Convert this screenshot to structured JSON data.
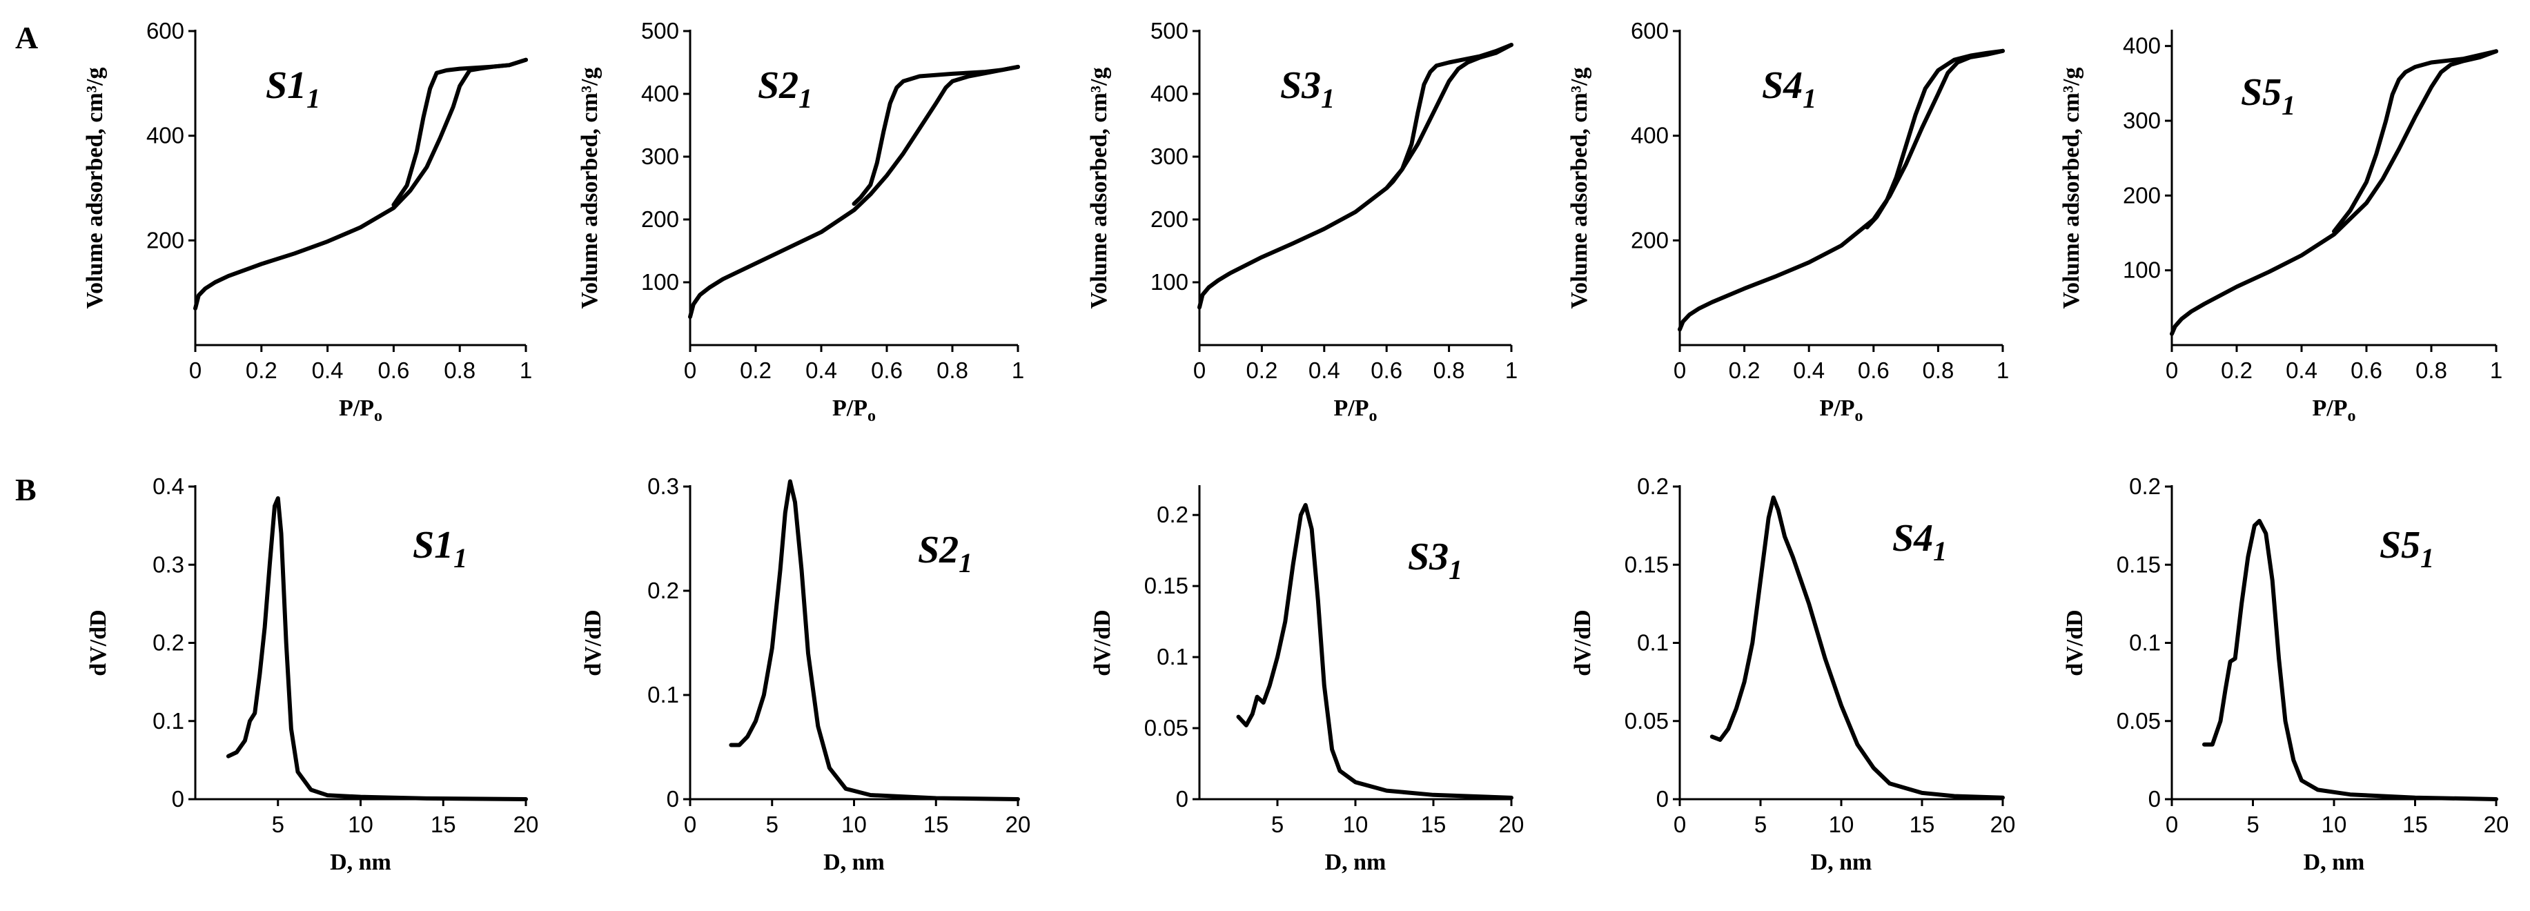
{
  "panel_labels": [
    "A",
    "B"
  ],
  "chart_data": [
    {
      "type": "line",
      "row": "A",
      "title": "S1",
      "title_subscript": "1",
      "xlabel": "P/P",
      "xlabel_subscript": "o",
      "ylabel": "Volume adsorbed, cm³/g",
      "xlim": [
        0,
        1
      ],
      "ylim": [
        0,
        600
      ],
      "xticks": [
        0,
        0.2,
        0.4,
        0.6,
        0.8,
        1
      ],
      "xtick_labels": [
        "0",
        "0.2",
        "0.4",
        "0.6",
        "0.8",
        "1"
      ],
      "yticks": [
        200,
        400,
        600
      ],
      "ytick_labels": [
        "200",
        "400",
        "600"
      ],
      "series": [
        {
          "name": "adsorption",
          "x": [
            0,
            0.01,
            0.03,
            0.06,
            0.1,
            0.2,
            0.3,
            0.4,
            0.5,
            0.6,
            0.65,
            0.7,
            0.74,
            0.78,
            0.8,
            0.83,
            0.86,
            0.9,
            0.95,
            1.0
          ],
          "y": [
            70,
            95,
            108,
            120,
            132,
            155,
            175,
            198,
            225,
            262,
            295,
            340,
            395,
            455,
            495,
            525,
            528,
            532,
            535,
            545
          ]
        },
        {
          "name": "desorption",
          "x": [
            1.0,
            0.95,
            0.9,
            0.85,
            0.8,
            0.76,
            0.73,
            0.71,
            0.69,
            0.67,
            0.64,
            0.6
          ],
          "y": [
            545,
            535,
            532,
            530,
            528,
            525,
            520,
            490,
            435,
            370,
            305,
            268
          ]
        }
      ]
    },
    {
      "type": "line",
      "row": "A",
      "title": "S2",
      "title_subscript": "1",
      "xlabel": "P/P",
      "xlabel_subscript": "o",
      "ylabel": "Volume adsorbed, cm³/g",
      "xlim": [
        0,
        1
      ],
      "ylim": [
        0,
        500
      ],
      "xticks": [
        0,
        0.2,
        0.4,
        0.6,
        0.8,
        1
      ],
      "xtick_labels": [
        "0",
        "0.2",
        "0.4",
        "0.6",
        "0.8",
        "1"
      ],
      "yticks": [
        100,
        200,
        300,
        400,
        500
      ],
      "ytick_labels": [
        "100",
        "200",
        "300",
        "400",
        "500"
      ],
      "series": [
        {
          "name": "adsorption",
          "x": [
            0,
            0.01,
            0.03,
            0.06,
            0.1,
            0.2,
            0.3,
            0.4,
            0.5,
            0.55,
            0.6,
            0.65,
            0.7,
            0.75,
            0.78,
            0.8,
            0.85,
            0.9,
            0.95,
            1.0
          ],
          "y": [
            45,
            65,
            80,
            92,
            105,
            130,
            155,
            180,
            215,
            240,
            270,
            305,
            345,
            385,
            410,
            420,
            428,
            433,
            438,
            443
          ]
        },
        {
          "name": "desorption",
          "x": [
            1.0,
            0.95,
            0.9,
            0.8,
            0.7,
            0.65,
            0.63,
            0.61,
            0.59,
            0.57,
            0.55,
            0.52,
            0.5
          ],
          "y": [
            443,
            438,
            435,
            432,
            428,
            420,
            410,
            385,
            340,
            290,
            255,
            235,
            225
          ]
        }
      ]
    },
    {
      "type": "line",
      "row": "A",
      "title": "S3",
      "title_subscript": "1",
      "xlabel": "P/P",
      "xlabel_subscript": "o",
      "ylabel": "Volume adsorbed, cm³/g",
      "xlim": [
        0,
        1
      ],
      "ylim": [
        0,
        500
      ],
      "xticks": [
        0,
        0.2,
        0.4,
        0.6,
        0.8,
        1
      ],
      "xtick_labels": [
        "0",
        "0.2",
        "0.4",
        "0.6",
        "0.8",
        "1"
      ],
      "yticks": [
        100,
        200,
        300,
        400,
        500
      ],
      "ytick_labels": [
        "100",
        "200",
        "300",
        "400",
        "500"
      ],
      "series": [
        {
          "name": "adsorption",
          "x": [
            0,
            0.01,
            0.03,
            0.06,
            0.1,
            0.2,
            0.3,
            0.4,
            0.5,
            0.6,
            0.65,
            0.7,
            0.75,
            0.8,
            0.83,
            0.86,
            0.9,
            0.95,
            1.0
          ],
          "y": [
            60,
            80,
            92,
            103,
            115,
            140,
            162,
            185,
            212,
            250,
            280,
            320,
            370,
            420,
            440,
            450,
            458,
            465,
            478
          ]
        },
        {
          "name": "desorption",
          "x": [
            1.0,
            0.95,
            0.9,
            0.85,
            0.8,
            0.76,
            0.74,
            0.72,
            0.7,
            0.68,
            0.65,
            0.62,
            0.6
          ],
          "y": [
            478,
            468,
            460,
            455,
            450,
            445,
            435,
            415,
            370,
            320,
            280,
            260,
            250
          ]
        }
      ]
    },
    {
      "type": "line",
      "row": "A",
      "title": "S4",
      "title_subscript": "1",
      "xlabel": "P/P",
      "xlabel_subscript": "o",
      "ylabel": "Volume adsorbed, cm³/g",
      "xlim": [
        0,
        1
      ],
      "ylim": [
        0,
        600
      ],
      "xticks": [
        0,
        0.2,
        0.4,
        0.6,
        0.8,
        1
      ],
      "xtick_labels": [
        "0",
        "0.2",
        "0.4",
        "0.6",
        "0.8",
        "1"
      ],
      "yticks": [
        200,
        400,
        600
      ],
      "ytick_labels": [
        "200",
        "400",
        "600"
      ],
      "series": [
        {
          "name": "adsorption",
          "x": [
            0,
            0.01,
            0.03,
            0.06,
            0.1,
            0.2,
            0.3,
            0.4,
            0.5,
            0.6,
            0.65,
            0.7,
            0.75,
            0.8,
            0.83,
            0.86,
            0.9,
            0.95,
            1.0
          ],
          "y": [
            30,
            45,
            58,
            70,
            82,
            108,
            132,
            158,
            190,
            240,
            285,
            345,
            415,
            480,
            520,
            540,
            550,
            555,
            562
          ]
        },
        {
          "name": "desorption",
          "x": [
            1.0,
            0.95,
            0.9,
            0.85,
            0.8,
            0.76,
            0.73,
            0.7,
            0.67,
            0.64,
            0.61,
            0.58
          ],
          "y": [
            562,
            558,
            553,
            545,
            525,
            490,
            440,
            380,
            320,
            275,
            245,
            225
          ]
        }
      ]
    },
    {
      "type": "line",
      "row": "A",
      "title": "S5",
      "title_subscript": "1",
      "xlabel": "P/P",
      "xlabel_subscript": "o",
      "ylabel": "Volume adsorbed, cm³/g",
      "xlim": [
        0,
        1
      ],
      "ylim": [
        0,
        420
      ],
      "xticks": [
        0,
        0.2,
        0.4,
        0.6,
        0.8,
        1
      ],
      "xtick_labels": [
        "0",
        "0.2",
        "0.4",
        "0.6",
        "0.8",
        "1"
      ],
      "yticks": [
        100,
        200,
        300,
        400
      ],
      "ytick_labels": [
        "100",
        "200",
        "300",
        "400"
      ],
      "series": [
        {
          "name": "adsorption",
          "x": [
            0,
            0.01,
            0.03,
            0.06,
            0.1,
            0.2,
            0.3,
            0.4,
            0.5,
            0.6,
            0.65,
            0.7,
            0.75,
            0.8,
            0.83,
            0.86,
            0.9,
            0.95,
            1.0
          ],
          "y": [
            15,
            25,
            35,
            45,
            55,
            78,
            98,
            120,
            148,
            190,
            222,
            262,
            305,
            345,
            365,
            375,
            380,
            385,
            393
          ]
        },
        {
          "name": "desorption",
          "x": [
            1.0,
            0.95,
            0.9,
            0.8,
            0.75,
            0.72,
            0.7,
            0.68,
            0.66,
            0.63,
            0.6,
            0.55,
            0.5
          ],
          "y": [
            393,
            388,
            383,
            378,
            372,
            365,
            355,
            335,
            300,
            255,
            218,
            180,
            152
          ]
        }
      ]
    },
    {
      "type": "line",
      "row": "B",
      "title": "S1",
      "title_subscript": "1",
      "xlabel": "D, nm",
      "ylabel": "dV/dD",
      "xlim": [
        0,
        20
      ],
      "ylim": [
        0,
        0.4
      ],
      "xticks": [
        5,
        10,
        15,
        20
      ],
      "xtick_labels": [
        "5",
        "10",
        "15",
        "20"
      ],
      "yticks": [
        0,
        0.1,
        0.2,
        0.3,
        0.4
      ],
      "ytick_labels": [
        "0",
        "0.1",
        "0.2",
        "0.3",
        "0.4"
      ],
      "series": [
        {
          "name": "pore size distribution",
          "x": [
            2,
            2.5,
            3,
            3.3,
            3.6,
            3.9,
            4.2,
            4.5,
            4.8,
            5.0,
            5.2,
            5.5,
            5.8,
            6.2,
            7,
            8,
            10,
            14,
            20
          ],
          "y": [
            0.055,
            0.06,
            0.075,
            0.1,
            0.11,
            0.16,
            0.22,
            0.3,
            0.375,
            0.385,
            0.34,
            0.2,
            0.09,
            0.035,
            0.012,
            0.005,
            0.003,
            0.001,
            0.0
          ]
        }
      ]
    },
    {
      "type": "line",
      "row": "B",
      "title": "S2",
      "title_subscript": "1",
      "xlabel": "D, nm",
      "ylabel": "dV/dD",
      "xlim": [
        0,
        20
      ],
      "ylim": [
        0,
        0.3
      ],
      "xticks": [
        0,
        5,
        10,
        15,
        20
      ],
      "xtick_labels": [
        "0",
        "5",
        "10",
        "15",
        "20"
      ],
      "yticks": [
        0,
        0.1,
        0.2,
        0.3
      ],
      "ytick_labels": [
        "0",
        "0.1",
        "0.2",
        "0.3"
      ],
      "series": [
        {
          "name": "pore size distribution",
          "x": [
            2.5,
            3,
            3.5,
            4,
            4.5,
            5,
            5.5,
            5.8,
            6.1,
            6.4,
            6.8,
            7.2,
            7.8,
            8.5,
            9.5,
            11,
            15,
            20
          ],
          "y": [
            0.052,
            0.052,
            0.06,
            0.075,
            0.1,
            0.145,
            0.22,
            0.275,
            0.305,
            0.285,
            0.22,
            0.14,
            0.07,
            0.03,
            0.01,
            0.004,
            0.001,
            0.0
          ]
        }
      ]
    },
    {
      "type": "line",
      "row": "B",
      "title": "S3",
      "title_subscript": "1",
      "xlabel": "D, nm",
      "ylabel": "dV/dD",
      "xlim": [
        0,
        20
      ],
      "ylim": [
        0,
        0.22
      ],
      "xticks": [
        5,
        10,
        15,
        20
      ],
      "xtick_labels": [
        "5",
        "10",
        "15",
        "20"
      ],
      "yticks": [
        0,
        0.05,
        0.1,
        0.15,
        0.2
      ],
      "ytick_labels": [
        "0",
        "0.05",
        "0.1",
        "0.15",
        "0.2"
      ],
      "series": [
        {
          "name": "pore size distribution",
          "x": [
            2.5,
            3,
            3.4,
            3.7,
            4.1,
            4.5,
            5,
            5.5,
            6,
            6.5,
            6.8,
            7.2,
            7.6,
            8,
            8.5,
            9,
            10,
            12,
            15,
            20
          ],
          "y": [
            0.058,
            0.052,
            0.06,
            0.072,
            0.068,
            0.08,
            0.1,
            0.125,
            0.165,
            0.2,
            0.207,
            0.19,
            0.14,
            0.08,
            0.035,
            0.02,
            0.012,
            0.006,
            0.003,
            0.001
          ]
        }
      ]
    },
    {
      "type": "line",
      "row": "B",
      "title": "S4",
      "title_subscript": "1",
      "xlabel": "D, nm",
      "ylabel": "dV/dD",
      "xlim": [
        0,
        20
      ],
      "ylim": [
        0,
        0.2
      ],
      "xticks": [
        0,
        5,
        10,
        15,
        20
      ],
      "xtick_labels": [
        "0",
        "5",
        "10",
        "15",
        "20"
      ],
      "yticks": [
        0,
        0.05,
        0.1,
        0.15,
        0.2
      ],
      "ytick_labels": [
        "0",
        "0.05",
        "0.1",
        "0.15",
        "0.2"
      ],
      "series": [
        {
          "name": "pore size distribution",
          "x": [
            2,
            2.5,
            3,
            3.5,
            4,
            4.5,
            5,
            5.5,
            5.8,
            6.1,
            6.5,
            7,
            8,
            9,
            10,
            11,
            12,
            13,
            15,
            17,
            20
          ],
          "y": [
            0.04,
            0.038,
            0.045,
            0.058,
            0.075,
            0.1,
            0.14,
            0.18,
            0.193,
            0.185,
            0.168,
            0.155,
            0.125,
            0.09,
            0.06,
            0.035,
            0.02,
            0.01,
            0.004,
            0.002,
            0.001
          ]
        }
      ]
    },
    {
      "type": "line",
      "row": "B",
      "title": "S5",
      "title_subscript": "1",
      "xlabel": "D, nm",
      "ylabel": "dV/dD",
      "xlim": [
        0,
        20
      ],
      "ylim": [
        0,
        0.2
      ],
      "xticks": [
        0,
        5,
        10,
        15,
        20
      ],
      "xtick_labels": [
        "0",
        "5",
        "10",
        "15",
        "20"
      ],
      "yticks": [
        0,
        0.05,
        0.1,
        0.15,
        0.2
      ],
      "ytick_labels": [
        "0",
        "0.05",
        "0.1",
        "0.15",
        "0.2"
      ],
      "series": [
        {
          "name": "pore size distribution",
          "x": [
            2,
            2.5,
            3,
            3.3,
            3.6,
            3.9,
            4.3,
            4.7,
            5.1,
            5.4,
            5.8,
            6.2,
            6.6,
            7,
            7.5,
            8,
            9,
            11,
            15,
            20
          ],
          "y": [
            0.035,
            0.035,
            0.05,
            0.07,
            0.088,
            0.09,
            0.125,
            0.155,
            0.175,
            0.178,
            0.17,
            0.14,
            0.09,
            0.05,
            0.025,
            0.012,
            0.006,
            0.003,
            0.001,
            0.0
          ]
        }
      ]
    }
  ]
}
